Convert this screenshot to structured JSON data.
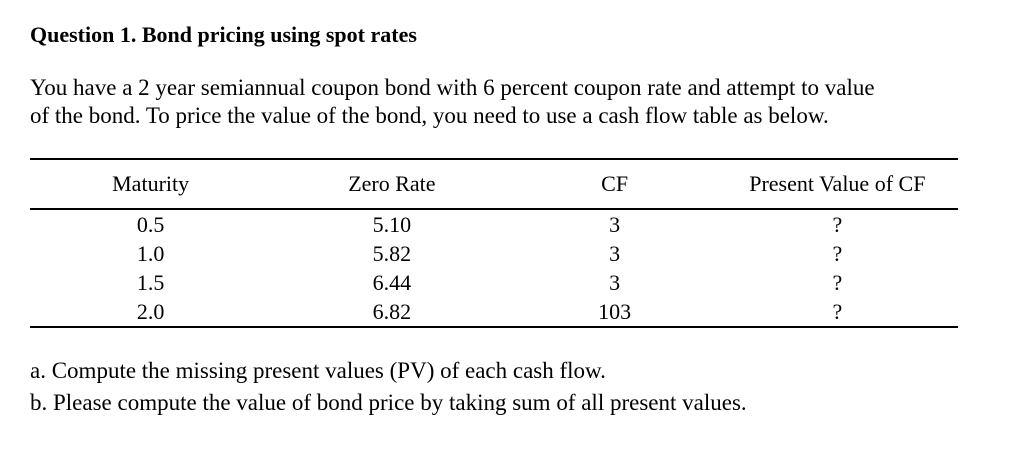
{
  "title": "Question 1. Bond pricing using spot rates",
  "intro": {
    "lines": [
      "You have a 2 year semiannual coupon bond with 6 percent coupon rate and attempt to value",
      "of the bond. To price the value of the bond, you need to use a cash flow table as below."
    ]
  },
  "table": {
    "columns": [
      "Maturity",
      "Zero Rate",
      "CF",
      "Present Value of CF"
    ],
    "rows": [
      [
        "0.5",
        "5.10",
        "3",
        "?"
      ],
      [
        "1.0",
        "5.82",
        "3",
        "?"
      ],
      [
        "1.5",
        "6.44",
        "3",
        "?"
      ],
      [
        "2.0",
        "6.82",
        "103",
        "?"
      ]
    ]
  },
  "tasks": {
    "items": [
      "a. Compute the missing present values (PV) of each cash flow.",
      "b. Please compute the value of bond price by taking sum of all present values."
    ]
  },
  "colors": {
    "background": "#ffffff",
    "text": "#000000",
    "table_rule": "#000000"
  }
}
